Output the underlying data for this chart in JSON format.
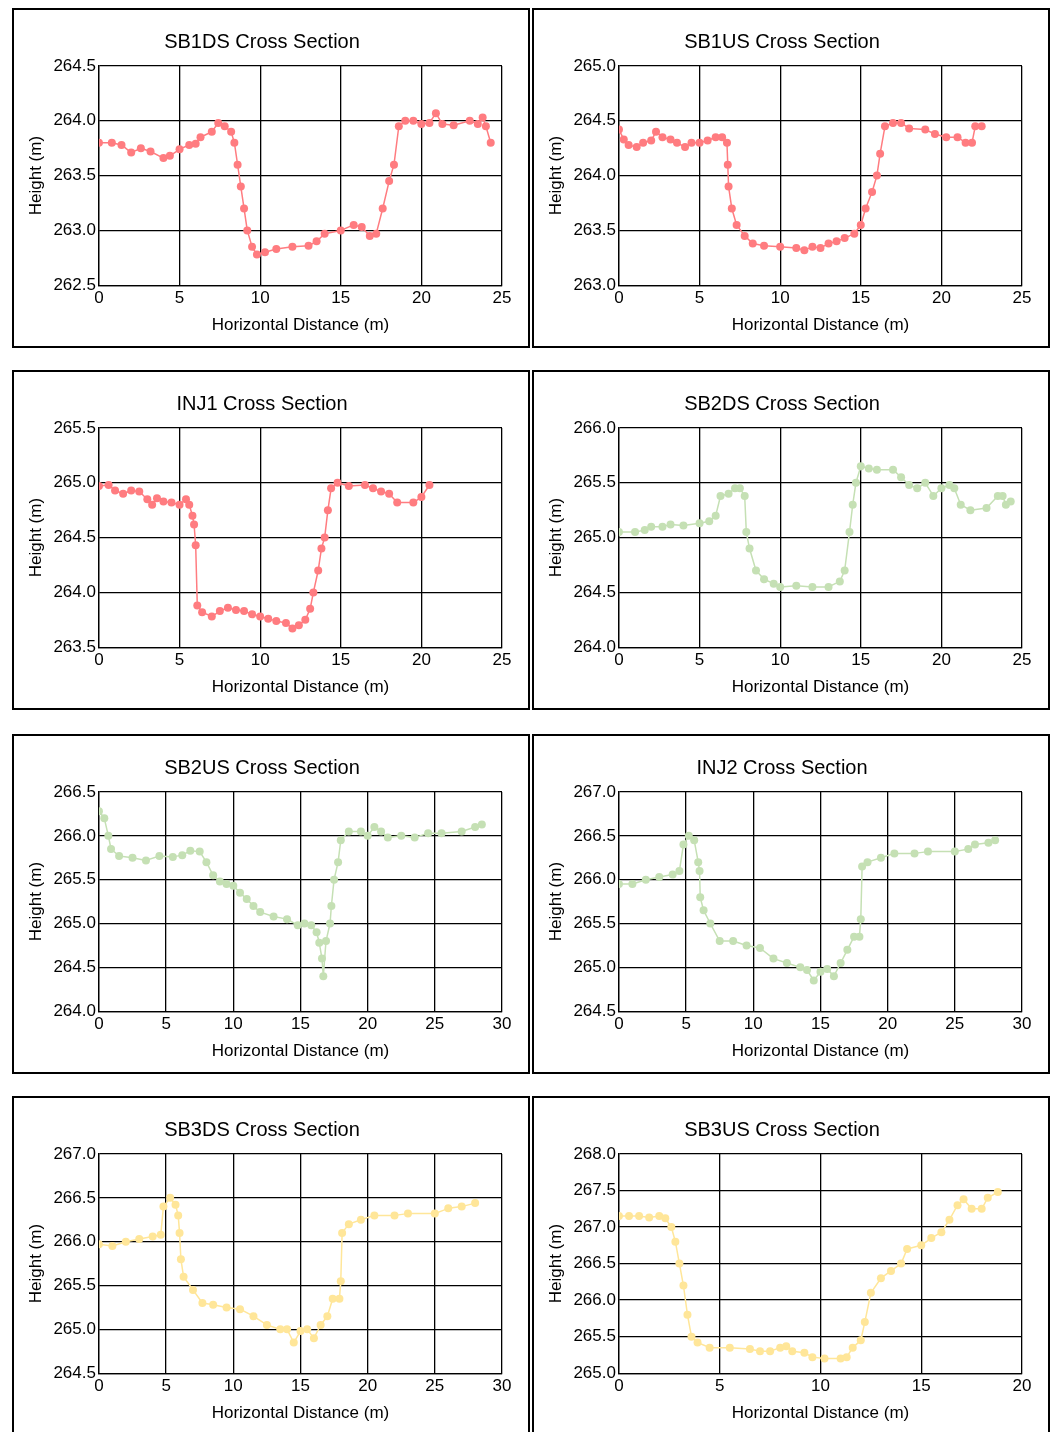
{
  "chart_data": [
    {
      "type": "line",
      "title": "SB1DS Cross Section",
      "xlabel": "Horizontal Distance (m)",
      "ylabel": "Height (m)",
      "xlim": [
        0,
        25
      ],
      "xticks": [
        0,
        5,
        10,
        15,
        20,
        25
      ],
      "ylim": [
        262.5,
        264.5
      ],
      "yticks": [
        262.5,
        {
          "value": 263,
          "label": "263.0"
        },
        263.5,
        {
          "value": 264,
          "label": "264.0"
        },
        264.5
      ],
      "grid": true,
      "marker": "circle",
      "line_style": "solid",
      "series": [
        {
          "color": "#ff7c80",
          "x": [
            0,
            0.8,
            1.4,
            2,
            2.6,
            3.2,
            4,
            4.4,
            5,
            5.6,
            6,
            6.3,
            7,
            7.4,
            7.8,
            8.2,
            8.4,
            8.6,
            8.8,
            9,
            9.2,
            9.5,
            9.8,
            10.3,
            11,
            12,
            13,
            13.5,
            14,
            15,
            15.8,
            16.3,
            16.8,
            17.2,
            17.6,
            18,
            18.3,
            18.6,
            19,
            19.5,
            20,
            20.5,
            20.9,
            21.3,
            22,
            23,
            23.5,
            23.8,
            24,
            24.3
          ],
          "values": [
            263.8,
            263.8,
            263.78,
            263.71,
            263.75,
            263.72,
            263.66,
            263.68,
            263.74,
            263.78,
            263.79,
            263.85,
            263.9,
            263.98,
            263.95,
            263.9,
            263.8,
            263.6,
            263.4,
            263.2,
            263.0,
            262.85,
            262.78,
            262.8,
            262.83,
            262.85,
            262.86,
            262.9,
            262.97,
            263.0,
            263.05,
            263.03,
            262.95,
            262.97,
            263.2,
            263.45,
            263.6,
            263.95,
            264.0,
            264.0,
            263.97,
            263.98,
            264.07,
            263.97,
            263.96,
            264.0,
            263.97,
            264.03,
            263.95,
            263.8
          ]
        }
      ]
    },
    {
      "type": "line",
      "title": "SB1US Cross Section",
      "xlabel": "Horizontal Distance (m)",
      "ylabel": "Height (m)",
      "xlim": [
        0,
        25
      ],
      "xticks": [
        0,
        5,
        10,
        15,
        20,
        25
      ],
      "ylim": [
        263,
        265
      ],
      "yticks": [
        {
          "value": 263,
          "label": "263.0"
        },
        263.5,
        {
          "value": 264,
          "label": "264.0"
        },
        264.5,
        {
          "value": 265,
          "label": "265.0"
        }
      ],
      "grid": true,
      "marker": "circle",
      "line_style": "solid",
      "series": [
        {
          "color": "#ff7c80",
          "x": [
            0,
            0.3,
            0.6,
            1.1,
            1.5,
            2,
            2.3,
            2.7,
            3.2,
            3.6,
            4.1,
            4.5,
            5,
            5.5,
            6,
            6.4,
            6.7,
            6.75,
            6.8,
            7,
            7.3,
            7.8,
            8.3,
            9,
            10,
            11,
            11.5,
            12,
            12.5,
            13,
            13.5,
            14,
            14.6,
            15,
            15.3,
            15.7,
            16,
            16.2,
            16.5,
            17,
            17.5,
            18,
            19,
            19.6,
            20.3,
            21,
            21.5,
            21.9,
            22.1,
            22.5
          ],
          "values": [
            264.42,
            264.33,
            264.28,
            264.26,
            264.3,
            264.32,
            264.4,
            264.35,
            264.33,
            264.3,
            264.26,
            264.3,
            264.3,
            264.32,
            264.35,
            264.35,
            264.3,
            264.1,
            263.9,
            263.7,
            263.55,
            263.45,
            263.38,
            263.36,
            263.35,
            263.34,
            263.32,
            263.35,
            263.34,
            263.38,
            263.4,
            263.43,
            263.47,
            263.55,
            263.7,
            263.85,
            264.0,
            264.2,
            264.45,
            264.48,
            264.48,
            264.43,
            264.42,
            264.38,
            264.35,
            264.35,
            264.3,
            264.3,
            264.45,
            264.45
          ]
        }
      ]
    },
    {
      "type": "line",
      "title": "INJ1 Cross Section",
      "xlabel": "Horizontal Distance (m)",
      "ylabel": "Height (m)",
      "xlim": [
        0,
        25
      ],
      "xticks": [
        0,
        5,
        10,
        15,
        20,
        25
      ],
      "ylim": [
        263.5,
        265.5
      ],
      "yticks": [
        263.5,
        {
          "value": 264,
          "label": "264.0"
        },
        264.5,
        {
          "value": 265,
          "label": "265.0"
        },
        265.5
      ],
      "grid": true,
      "marker": "circle",
      "line_style": "solid",
      "series": [
        {
          "color": "#ff7c80",
          "x": [
            0,
            0.6,
            1,
            1.5,
            2,
            2.5,
            3,
            3.3,
            3.6,
            4,
            4.5,
            5,
            5.4,
            5.6,
            5.8,
            5.9,
            6,
            6.1,
            6.4,
            7,
            7.5,
            8,
            8.5,
            9,
            9.5,
            10,
            10.5,
            11,
            11.6,
            12,
            12.4,
            12.8,
            13.1,
            13.3,
            13.6,
            13.8,
            14,
            14.2,
            14.4,
            14.8,
            15.5,
            16.5,
            17,
            17.5,
            18,
            18.5,
            19.5,
            20,
            20.5
          ],
          "values": [
            264.97,
            264.98,
            264.93,
            264.9,
            264.93,
            264.92,
            264.85,
            264.8,
            264.86,
            264.83,
            264.82,
            264.8,
            264.85,
            264.8,
            264.7,
            264.62,
            264.43,
            263.88,
            263.82,
            263.78,
            263.83,
            263.86,
            263.84,
            263.83,
            263.8,
            263.78,
            263.76,
            263.74,
            263.72,
            263.67,
            263.7,
            263.75,
            263.85,
            264.0,
            264.2,
            264.4,
            264.5,
            264.75,
            264.95,
            265.0,
            264.97,
            264.98,
            264.95,
            264.92,
            264.9,
            264.82,
            264.82,
            264.87,
            264.98
          ]
        }
      ]
    },
    {
      "type": "line",
      "title": "SB2DS Cross Section",
      "xlabel": "Horizontal Distance (m)",
      "ylabel": "Height (m)",
      "xlim": [
        0,
        25
      ],
      "xticks": [
        0,
        5,
        10,
        15,
        20,
        25
      ],
      "ylim": [
        264,
        266
      ],
      "yticks": [
        {
          "value": 264,
          "label": "264.0"
        },
        264.5,
        {
          "value": 265,
          "label": "265.0"
        },
        265.5,
        {
          "value": 266,
          "label": "266.0"
        }
      ],
      "grid": true,
      "marker": "circle",
      "line_style": "solid",
      "series": [
        {
          "color": "#c5e0b4",
          "x": [
            0,
            1,
            1.6,
            2,
            2.7,
            3.2,
            4,
            5,
            5.6,
            6,
            6.3,
            6.8,
            7.2,
            7.5,
            7.8,
            7.9,
            8.1,
            8.5,
            9,
            9.6,
            10,
            11,
            12,
            13,
            13.7,
            14,
            14.3,
            14.5,
            14.7,
            15,
            15.5,
            16,
            17,
            17.5,
            18,
            18.5,
            19,
            19.5,
            20,
            20.5,
            20.8,
            21.2,
            21.8,
            22.8,
            23.5,
            23.8,
            24,
            24.3
          ],
          "values": [
            265.05,
            265.05,
            265.07,
            265.1,
            265.1,
            265.12,
            265.11,
            265.13,
            265.15,
            265.2,
            265.38,
            265.4,
            265.45,
            265.45,
            265.38,
            265.05,
            264.9,
            264.7,
            264.62,
            264.58,
            264.55,
            264.56,
            264.55,
            264.55,
            264.6,
            264.7,
            265.05,
            265.3,
            265.5,
            265.65,
            265.63,
            265.62,
            265.62,
            265.55,
            265.48,
            265.45,
            265.5,
            265.38,
            265.45,
            265.48,
            265.45,
            265.3,
            265.25,
            265.27,
            265.38,
            265.38,
            265.3,
            265.33
          ]
        }
      ]
    },
    {
      "type": "line",
      "title": "SB2US Cross Section",
      "xlabel": "Horizontal Distance (m)",
      "ylabel": "Height (m)",
      "xlim": [
        0,
        30
      ],
      "xticks": [
        0,
        5,
        10,
        15,
        20,
        25,
        30
      ],
      "ylim": [
        264,
        266.5
      ],
      "yticks": [
        {
          "value": 264,
          "label": "264.0"
        },
        264.5,
        {
          "value": 265,
          "label": "265.0"
        },
        265.5,
        {
          "value": 266,
          "label": "266.0"
        },
        266.5
      ],
      "grid": true,
      "marker": "circle",
      "line_style": "solid",
      "series": [
        {
          "color": "#c5e0b4",
          "x": [
            0,
            0.4,
            0.7,
            0.9,
            1.5,
            2.5,
            3.5,
            4.5,
            5.5,
            6.2,
            6.8,
            7.5,
            8,
            8.5,
            9,
            9.5,
            10,
            10.5,
            11,
            11.5,
            12,
            13,
            14,
            14.8,
            15.3,
            15.8,
            16.2,
            16.4,
            16.6,
            16.7,
            16.9,
            17.2,
            17.3,
            17.5,
            17.8,
            18,
            18.6,
            19.5,
            20,
            20.5,
            21,
            21.5,
            22.5,
            23.5,
            24.5,
            25.5,
            27,
            28,
            28.5
          ],
          "values": [
            266.28,
            266.2,
            266,
            265.85,
            265.77,
            265.75,
            265.72,
            265.77,
            265.76,
            265.78,
            265.83,
            265.82,
            265.7,
            265.55,
            265.48,
            265.45,
            265.43,
            265.35,
            265.28,
            265.2,
            265.13,
            265.08,
            265.05,
            264.98,
            265,
            264.98,
            264.9,
            264.78,
            264.6,
            264.4,
            264.8,
            265,
            265.2,
            265.5,
            265.7,
            265.95,
            266.05,
            266.05,
            266,
            266.1,
            266.05,
            265.98,
            266,
            265.98,
            266.03,
            266.03,
            266.05,
            266.1,
            266.13
          ]
        }
      ]
    },
    {
      "type": "line",
      "title": "INJ2 Cross Section",
      "xlabel": "Horizontal Distance (m)",
      "ylabel": "Height (m)",
      "xlim": [
        0,
        30
      ],
      "xticks": [
        0,
        5,
        10,
        15,
        20,
        25,
        30
      ],
      "ylim": [
        264.5,
        267
      ],
      "yticks": [
        264.5,
        {
          "value": 265,
          "label": "265.0"
        },
        265.5,
        {
          "value": 266,
          "label": "266.0"
        },
        266.5,
        {
          "value": 267,
          "label": "267.0"
        }
      ],
      "grid": true,
      "marker": "circle",
      "line_style": "solid",
      "series": [
        {
          "color": "#c5e0b4",
          "x": [
            0,
            1,
            2,
            3,
            4,
            4.5,
            4.8,
            5.2,
            5.6,
            5.9,
            6,
            6.05,
            6.3,
            6.8,
            7.5,
            8.5,
            9.5,
            10.5,
            11.5,
            12.5,
            13.5,
            14,
            14.5,
            15,
            15.5,
            16,
            16.5,
            17,
            17.5,
            17.9,
            18,
            18.1,
            18.5,
            19.5,
            20.5,
            22,
            23,
            25,
            26,
            26.5,
            27.5,
            28
          ],
          "values": [
            265.95,
            265.95,
            266,
            266.03,
            266.06,
            266.1,
            266.4,
            266.5,
            266.45,
            266.2,
            266.1,
            265.8,
            265.65,
            265.5,
            265.3,
            265.3,
            265.25,
            265.22,
            265.1,
            265.05,
            265,
            264.97,
            264.85,
            264.95,
            264.98,
            264.9,
            265.05,
            265.2,
            265.35,
            265.35,
            265.55,
            266.15,
            266.2,
            266.25,
            266.3,
            266.3,
            266.32,
            266.32,
            266.35,
            266.4,
            266.42,
            266.45
          ]
        }
      ]
    },
    {
      "type": "line",
      "title": "SB3DS Cross Section",
      "xlabel": "Horizontal Distance (m)",
      "ylabel": "Height (m)",
      "xlim": [
        0,
        30
      ],
      "xticks": [
        0,
        5,
        10,
        15,
        20,
        25,
        30
      ],
      "ylim": [
        264.5,
        267
      ],
      "yticks": [
        264.5,
        {
          "value": 265,
          "label": "265.0"
        },
        265.5,
        {
          "value": 266,
          "label": "266.0"
        },
        266.5,
        {
          "value": 267,
          "label": "267.0"
        }
      ],
      "grid": true,
      "marker": "circle",
      "line_style": "solid",
      "series": [
        {
          "color": "#ffe699",
          "x": [
            0,
            1,
            2,
            3,
            4,
            4.6,
            4.8,
            5.3,
            5.7,
            5.9,
            6,
            6.1,
            6.3,
            7,
            7.7,
            8.5,
            9.5,
            10.5,
            11.5,
            12.5,
            13.5,
            14,
            14.5,
            15,
            15.5,
            16,
            16.5,
            17,
            17.4,
            17.9,
            18,
            18.1,
            18.6,
            19.5,
            20.5,
            22,
            23,
            25,
            26,
            27,
            28
          ],
          "values": [
            265.97,
            265.95,
            266,
            266.03,
            266.06,
            266.08,
            266.4,
            266.5,
            266.42,
            266.3,
            266.1,
            265.8,
            265.6,
            265.45,
            265.3,
            265.28,
            265.25,
            265.23,
            265.15,
            265.05,
            265,
            265,
            264.85,
            264.98,
            265,
            264.9,
            265.05,
            265.15,
            265.35,
            265.35,
            265.55,
            266.1,
            266.2,
            266.25,
            266.3,
            266.3,
            266.32,
            266.32,
            266.38,
            266.4,
            266.44
          ]
        }
      ]
    },
    {
      "type": "line",
      "title": "SB3US Cross Section",
      "xlabel": "Horizontal Distance (m)",
      "ylabel": "Height (m)",
      "xlim": [
        0,
        20
      ],
      "xticks": [
        0,
        5,
        10,
        15,
        20
      ],
      "ylim": [
        265,
        268
      ],
      "yticks": [
        {
          "value": 265,
          "label": "265.0"
        },
        265.5,
        {
          "value": 266,
          "label": "266.0"
        },
        266.5,
        {
          "value": 267,
          "label": "267.0"
        },
        267.5,
        {
          "value": 268,
          "label": "268.0"
        }
      ],
      "grid": true,
      "marker": "circle",
      "line_style": "solid",
      "series": [
        {
          "color": "#ffe699",
          "x": [
            0,
            0.5,
            1,
            1.5,
            2,
            2.3,
            2.6,
            2.8,
            3,
            3.2,
            3.4,
            3.6,
            3.9,
            4.5,
            5.5,
            6.5,
            7,
            7.5,
            8,
            8.3,
            8.6,
            9.2,
            9.6,
            10.2,
            11,
            11.3,
            11.6,
            12,
            12.2,
            12.5,
            13,
            13.5,
            14,
            14.3,
            15,
            15.5,
            16,
            16.4,
            16.8,
            17.1,
            17.5,
            18,
            18.3,
            18.8
          ],
          "values": [
            267.15,
            267.15,
            267.15,
            267.13,
            267.15,
            267.12,
            267,
            266.8,
            266.5,
            266.2,
            265.8,
            265.5,
            265.42,
            265.35,
            265.35,
            265.33,
            265.3,
            265.3,
            265.35,
            265.37,
            265.3,
            265.28,
            265.22,
            265.2,
            265.2,
            265.22,
            265.35,
            265.45,
            265.7,
            266.1,
            266.3,
            266.4,
            266.5,
            266.7,
            266.75,
            266.85,
            266.93,
            267.1,
            267.3,
            267.38,
            267.25,
            267.25,
            267.4,
            267.48
          ]
        }
      ]
    }
  ]
}
